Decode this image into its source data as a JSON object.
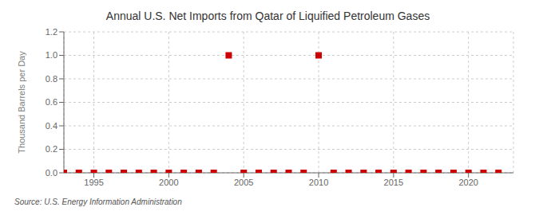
{
  "chart_data": {
    "type": "scatter",
    "title": "Annual U.S. Net Imports from Qatar of Liquified Petroleum Gases",
    "y_label": "Thousand Barrels per Day",
    "annotations": [
      "Source: U.S. Energy Information Administration"
    ],
    "x": [
      1993,
      1994,
      1995,
      1996,
      1997,
      1998,
      1999,
      2000,
      2001,
      2002,
      2003,
      2004,
      2005,
      2006,
      2007,
      2008,
      2009,
      2010,
      2011,
      2012,
      2013,
      2014,
      2015,
      2016,
      2017,
      2018,
      2019,
      2020,
      2021,
      2022
    ],
    "values": [
      0,
      0,
      0,
      0,
      0,
      0,
      0,
      0,
      0,
      0,
      0,
      1,
      0,
      0,
      0,
      0,
      0,
      1,
      0,
      0,
      0,
      0,
      0,
      0,
      0,
      0,
      0,
      0,
      0,
      0
    ],
    "color": "#cc0000",
    "marker": "square",
    "xlim": [
      1993,
      2023
    ],
    "ylim": [
      0,
      1.2
    ],
    "xticks": [
      1995,
      2000,
      2005,
      2010,
      2015,
      2020
    ],
    "yticks": [
      {
        "value": 0,
        "label": "0.0"
      },
      0.2,
      0.4,
      0.6,
      0.8,
      {
        "value": 1,
        "label": "1.0"
      },
      1.2
    ],
    "grid": true
  }
}
